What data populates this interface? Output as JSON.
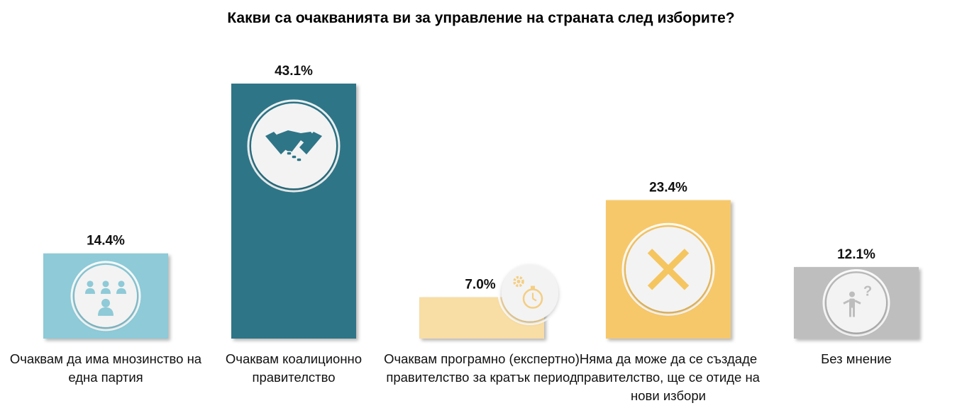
{
  "chart_data": {
    "type": "bar",
    "title": "Какви са очакванията ви за управление на страната след изборите?",
    "xlabel": "",
    "ylabel": "",
    "ylim": [
      0,
      43.1
    ],
    "categories": [
      "Очаквам да има мнозинство на една партия",
      "Очаквам коалиционно правителство",
      "Очаквам програмно (експертно) правителство за кратък период",
      "Няма да може да се създаде правителство, ще се отиде на нови избори",
      "Без мнение"
    ],
    "values": [
      14.4,
      43.1,
      7.0,
      23.4,
      12.1
    ],
    "value_labels": [
      "14.4%",
      "43.1%",
      "7.0%",
      "23.4%",
      "12.1%"
    ],
    "colors": [
      "#8ECAD7",
      "#2E7587",
      "#F8DDA4",
      "#F7C86A",
      "#BEBEBE"
    ],
    "icon_colors": [
      "#8ECAD7",
      "#2E7587",
      "#F4CE82",
      "#F5C55F",
      "#BDBDBD"
    ],
    "icons": [
      "people-group-icon",
      "handshake-icon",
      "stopwatch-gear-icon",
      "cross-icon",
      "person-question-icon"
    ]
  }
}
